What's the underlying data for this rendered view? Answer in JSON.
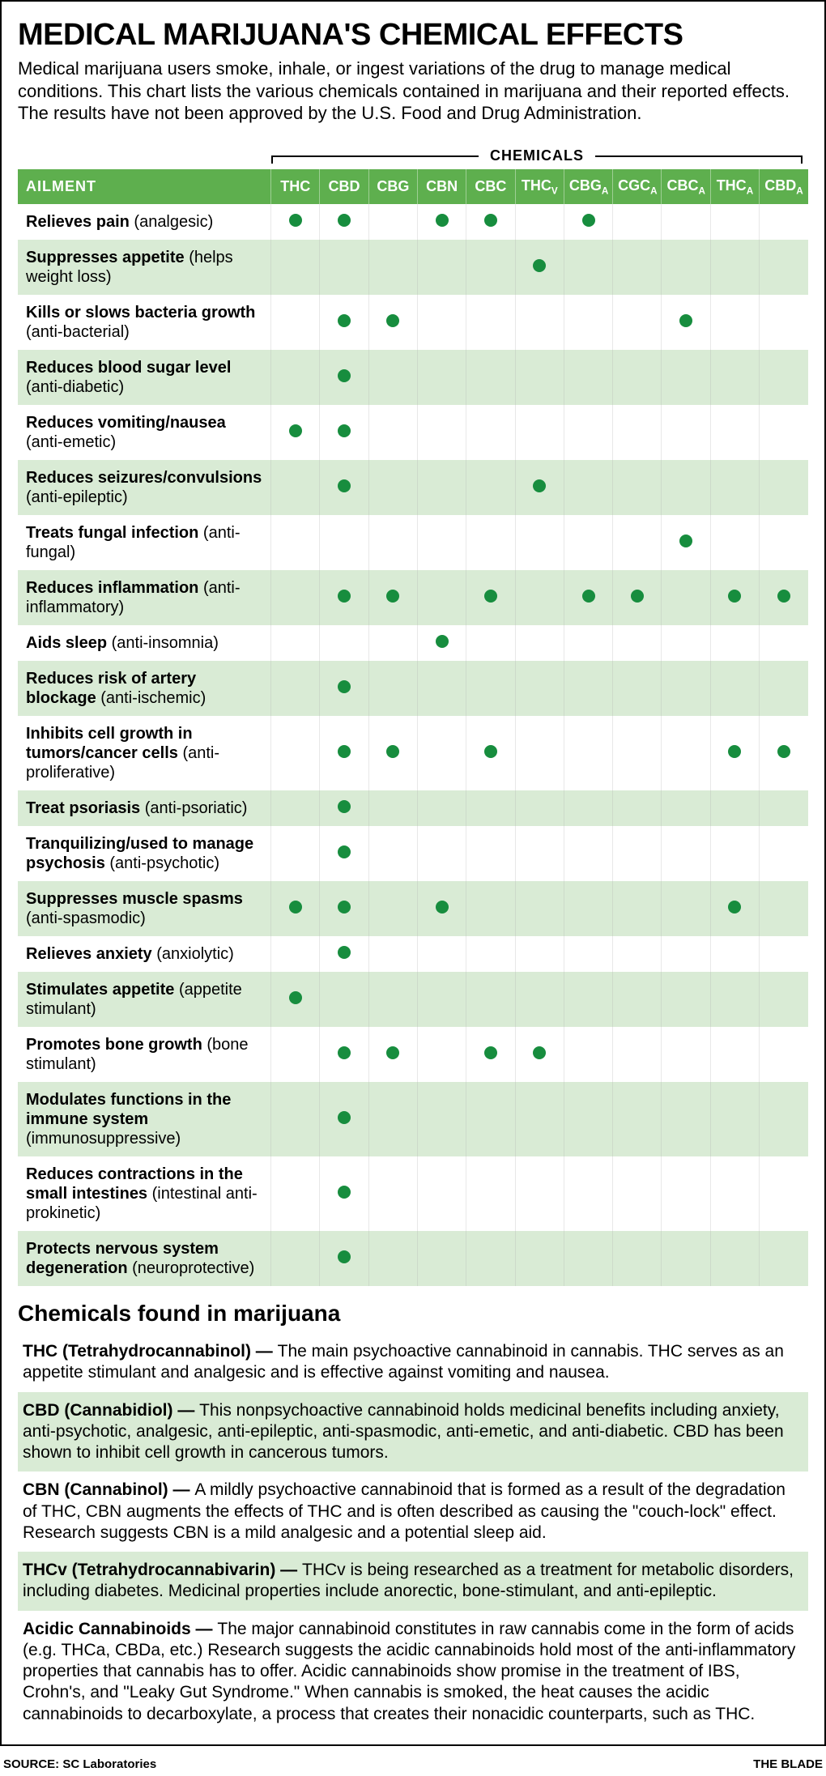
{
  "title": "MEDICAL MARIJUANA'S CHEMICAL EFFECTS",
  "subtitle": "Medical marijuana users smoke, inhale, or ingest variations of the drug to manage medical conditions. This chart lists the various chemicals contained in marijuana and their reported effects. The results have not been approved by the U.S. Food and Drug Administration.",
  "chemicals_label": "CHEMICALS",
  "ailment_header": "AILMENT",
  "columns": [
    {
      "name": "THC"
    },
    {
      "name": "CBD"
    },
    {
      "name": "CBG"
    },
    {
      "name": "CBN"
    },
    {
      "name": "CBC"
    },
    {
      "name": "THC",
      "sub": "V"
    },
    {
      "name": "CBG",
      "sub": "A"
    },
    {
      "name": "CGC",
      "sub": "A"
    },
    {
      "name": "CBC",
      "sub": "A"
    },
    {
      "name": "THC",
      "sub": "A"
    },
    {
      "name": "CBD",
      "sub": "A"
    }
  ],
  "rows": [
    {
      "bold": "Relieves pain",
      "paren": "(analgesic)",
      "dots": [
        1,
        1,
        0,
        1,
        1,
        0,
        1,
        0,
        0,
        0,
        0
      ]
    },
    {
      "bold": "Suppresses appetite",
      "paren": "(helps weight loss)",
      "dots": [
        0,
        0,
        0,
        0,
        0,
        1,
        0,
        0,
        0,
        0,
        0
      ]
    },
    {
      "bold": "Kills or slows bacteria growth",
      "paren": "(anti-bacterial)",
      "dots": [
        0,
        1,
        1,
        0,
        0,
        0,
        0,
        0,
        1,
        0,
        0
      ]
    },
    {
      "bold": "Reduces blood sugar level",
      "paren": "(anti-diabetic)",
      "dots": [
        0,
        1,
        0,
        0,
        0,
        0,
        0,
        0,
        0,
        0,
        0
      ]
    },
    {
      "bold": "Reduces vomiting/nausea",
      "paren": "(anti-emetic)",
      "dots": [
        1,
        1,
        0,
        0,
        0,
        0,
        0,
        0,
        0,
        0,
        0
      ]
    },
    {
      "bold": "Reduces seizures/convulsions",
      "paren": "(anti-epileptic)",
      "dots": [
        0,
        1,
        0,
        0,
        0,
        1,
        0,
        0,
        0,
        0,
        0
      ]
    },
    {
      "bold": "Treats fungal infection",
      "paren": "(anti-fungal)",
      "dots": [
        0,
        0,
        0,
        0,
        0,
        0,
        0,
        0,
        1,
        0,
        0
      ]
    },
    {
      "bold": "Reduces inflammation",
      "paren": "(anti-inflammatory)",
      "dots": [
        0,
        1,
        1,
        0,
        1,
        0,
        1,
        1,
        0,
        1,
        1
      ]
    },
    {
      "bold": "Aids sleep",
      "paren": "(anti-insomnia)",
      "dots": [
        0,
        0,
        0,
        1,
        0,
        0,
        0,
        0,
        0,
        0,
        0
      ]
    },
    {
      "bold": "Reduces risk of artery blockage",
      "paren": "(anti-ischemic)",
      "dots": [
        0,
        1,
        0,
        0,
        0,
        0,
        0,
        0,
        0,
        0,
        0
      ]
    },
    {
      "bold": "Inhibits cell growth in tumors/cancer cells",
      "paren": "(anti-proliferative)",
      "dots": [
        0,
        1,
        1,
        0,
        1,
        0,
        0,
        0,
        0,
        1,
        1
      ]
    },
    {
      "bold": "Treat psoriasis",
      "paren": "(anti-psoriatic)",
      "dots": [
        0,
        1,
        0,
        0,
        0,
        0,
        0,
        0,
        0,
        0,
        0
      ]
    },
    {
      "bold": "Tranquilizing/used to manage psychosis",
      "paren": "(anti-psychotic)",
      "dots": [
        0,
        1,
        0,
        0,
        0,
        0,
        0,
        0,
        0,
        0,
        0
      ]
    },
    {
      "bold": "Suppresses muscle spasms",
      "paren": "(anti-spasmodic)",
      "dots": [
        1,
        1,
        0,
        1,
        0,
        0,
        0,
        0,
        0,
        1,
        0
      ]
    },
    {
      "bold": "Relieves anxiety",
      "paren": "(anxiolytic)",
      "dots": [
        0,
        1,
        0,
        0,
        0,
        0,
        0,
        0,
        0,
        0,
        0
      ]
    },
    {
      "bold": "Stimulates appetite",
      "paren": "(appetite stimulant)",
      "dots": [
        1,
        0,
        0,
        0,
        0,
        0,
        0,
        0,
        0,
        0,
        0
      ]
    },
    {
      "bold": "Promotes bone growth",
      "paren": "(bone stimulant)",
      "dots": [
        0,
        1,
        1,
        0,
        1,
        1,
        0,
        0,
        0,
        0,
        0
      ]
    },
    {
      "bold": "Modulates functions in the immune system",
      "paren": "(immunosuppressive)",
      "dots": [
        0,
        1,
        0,
        0,
        0,
        0,
        0,
        0,
        0,
        0,
        0
      ]
    },
    {
      "bold": "Reduces contractions in the small intestines",
      "paren": "(intestinal anti-prokinetic)",
      "dots": [
        0,
        1,
        0,
        0,
        0,
        0,
        0,
        0,
        0,
        0,
        0
      ]
    },
    {
      "bold": "Protects nervous system degeneration",
      "paren": "(neuroprotective)",
      "dots": [
        0,
        1,
        0,
        0,
        0,
        0,
        0,
        0,
        0,
        0,
        0
      ]
    }
  ],
  "desc_title": "Chemicals found in marijuana",
  "descriptions": [
    {
      "lead": "THC (Tetrahydrocannabinol) — ",
      "body": "The main psychoactive cannabinoid in cannabis. THC serves as an appetite stimulant and analgesic and is effective against vomiting and nausea."
    },
    {
      "lead": "CBD (Cannabidiol) — ",
      "body": "This nonpsychoactive cannabinoid holds medicinal benefits including anxiety, anti-psychotic, analgesic, anti-epileptic, anti-spasmodic, anti-emetic, and anti-diabetic. CBD has been shown to inhibit cell growth in cancerous tumors."
    },
    {
      "lead": "CBN (Cannabinol) — ",
      "body": "A mildly psychoactive cannabinoid that is formed as a result of the degradation of THC, CBN augments the effects of THC and is often described as causing the \"couch-lock\" effect. Research suggests CBN is a mild analgesic and a potential sleep aid."
    },
    {
      "lead": "THCv (Tetrahydrocannabivarin) — ",
      "body": "THCv is being researched as a treatment for metabolic disorders, including diabetes. Medicinal properties include anorectic, bone-stimulant, and anti-epileptic."
    },
    {
      "lead": "Acidic Cannabinoids — ",
      "body": "The major cannabinoid constitutes in raw cannabis come in the form of acids (e.g. THCa, CBDa, etc.) Research suggests the acidic cannabinoids hold most of the anti-inflammatory properties that cannabis has to offer. Acidic cannabinoids show promise in the treatment of IBS, Crohn's, and \"Leaky Gut Syndrome.\" When cannabis is smoked, the heat causes the acidic cannabinoids to decarboxylate, a process that creates their nonacidic counterparts, such as THC."
    }
  ],
  "source": "SOURCE: SC Laboratories",
  "publisher": "THE BLADE",
  "colors": {
    "header_bg": "#5eaf4e",
    "stripe_bg": "#d9ebd5",
    "dot_color": "#178d3e"
  }
}
